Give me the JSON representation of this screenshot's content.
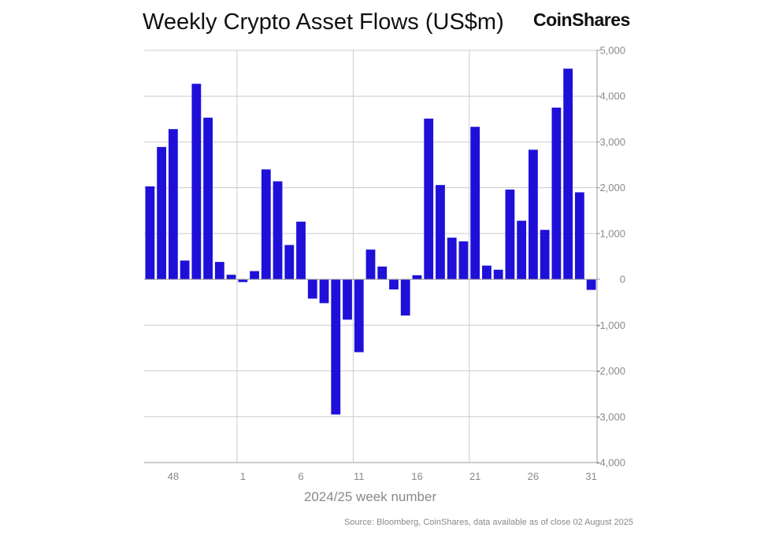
{
  "header": {
    "title": "Weekly Crypto Asset Flows (US$m)",
    "brand": "CoinShares"
  },
  "footer": {
    "source": "Source: Bloomberg, CoinShares, data available as of close 02 August 2025"
  },
  "colors": {
    "bar": "#1e10d8",
    "grid": "#cccccc",
    "axis": "#999999",
    "text": "#111111",
    "muted": "#8a8a8a"
  },
  "chart_data": {
    "type": "bar",
    "title": "Weekly Crypto Asset Flows (US$m)",
    "xlabel": "2024/25 week number",
    "ylabel": "",
    "ylim": [
      -4000,
      5000
    ],
    "y_ticks": [
      5000,
      4000,
      3000,
      2000,
      1000,
      0,
      -1000,
      -2000,
      -3000,
      -4000
    ],
    "y_tick_labels": [
      "5,000",
      "4,000",
      "3,000",
      "2,000",
      "1,000",
      "0",
      "-1,000",
      "-2,000",
      "-3,000",
      "-4,000"
    ],
    "y_axis_position": "right",
    "grid": "horizontal",
    "x_tick_labels": [
      "48",
      "1",
      "6",
      "11",
      "16",
      "21",
      "26",
      "31"
    ],
    "x_vertical_gridlines_after_bar": [
      8,
      18,
      28
    ],
    "categories": [
      "46",
      "47",
      "48",
      "49",
      "50",
      "51",
      "52",
      "53",
      "1",
      "2",
      "3",
      "4",
      "5",
      "6",
      "7",
      "8",
      "9",
      "10",
      "11",
      "12",
      "13",
      "14",
      "15",
      "16",
      "17",
      "18",
      "19",
      "20",
      "21",
      "22",
      "23",
      "24",
      "25",
      "26",
      "27",
      "28",
      "29",
      "30",
      "31"
    ],
    "x_tick_category_index": [
      2,
      8,
      13,
      18,
      23,
      28,
      33,
      38
    ],
    "series": [
      {
        "values": [
          2030,
          2890,
          3280,
          410,
          4270,
          3530,
          380,
          100,
          -60,
          180,
          2400,
          2140,
          750,
          1260,
          -420,
          -520,
          -2950,
          -880,
          -1590,
          650,
          280,
          -220,
          -790,
          90,
          3510,
          2060,
          910,
          830,
          3330,
          300,
          210,
          1960,
          1280,
          2830,
          1080,
          3750,
          4600,
          1900,
          -230
        ]
      }
    ]
  }
}
